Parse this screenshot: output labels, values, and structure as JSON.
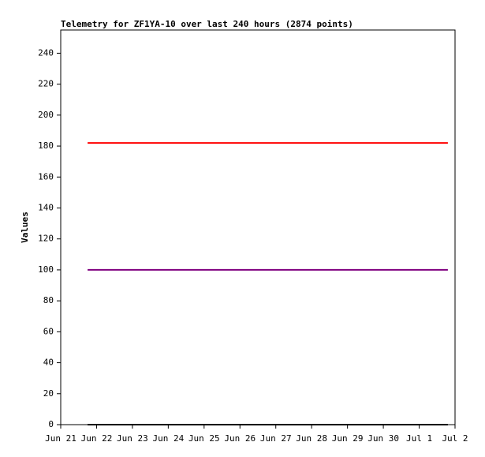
{
  "chart_data": {
    "type": "line",
    "title": "Telemetry for ZF1YA-10 over last 240 hours (2874 points)",
    "y_label": "Values",
    "xlim": [
      0,
      11
    ],
    "xticks": [
      {
        "value": 0,
        "label": "Jun 21"
      },
      {
        "value": 1,
        "label": "Jun 22"
      },
      {
        "value": 2,
        "label": "Jun 23"
      },
      {
        "value": 3,
        "label": "Jun 24"
      },
      {
        "value": 4,
        "label": "Jun 25"
      },
      {
        "value": 5,
        "label": "Jun 26"
      },
      {
        "value": 6,
        "label": "Jun 27"
      },
      {
        "value": 7,
        "label": "Jun 28"
      },
      {
        "value": 8,
        "label": "Jun 29"
      },
      {
        "value": 9,
        "label": "Jun 30"
      },
      {
        "value": 10,
        "label": "Jul 1"
      },
      {
        "value": 11,
        "label": "Jul 2"
      }
    ],
    "ylim": [
      0,
      255
    ],
    "yticks": [
      0,
      20,
      40,
      60,
      80,
      100,
      120,
      140,
      160,
      180,
      200,
      220,
      240
    ],
    "grid": false,
    "series": [
      {
        "color": "#ff0000",
        "x": [
          0.75,
          10.8
        ],
        "values": [
          182,
          182
        ]
      },
      {
        "color": "#800080",
        "x": [
          0.75,
          10.8
        ],
        "values": [
          100,
          100
        ]
      },
      {
        "color": "#000000",
        "x": [
          0.75,
          10.8
        ],
        "values": [
          0,
          0
        ]
      }
    ]
  }
}
